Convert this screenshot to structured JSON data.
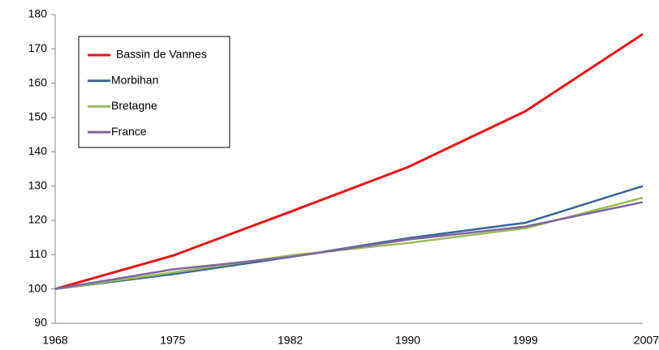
{
  "chart_data": {
    "type": "line",
    "categories": [
      "1968",
      "1975",
      "1982",
      "1990",
      "1999",
      "2007"
    ],
    "series": [
      {
        "name": "Bassin de Vannes",
        "color": "#e8141b",
        "values": [
          100,
          109.7,
          122.5,
          135.5,
          151.8,
          174.3
        ]
      },
      {
        "name": "Morbihan",
        "color": "#3b6694",
        "values": [
          100,
          104.3,
          109.3,
          114.8,
          119.3,
          130
        ]
      },
      {
        "name": "Bretagne",
        "color": "#9bbb59",
        "values": [
          100,
          104.8,
          109.8,
          113.4,
          117.7,
          126.6
        ]
      },
      {
        "name": "France",
        "color": "#8064a2",
        "values": [
          100,
          105.7,
          109.3,
          114.4,
          118.2,
          125.3
        ]
      }
    ],
    "ylim": [
      90,
      180
    ],
    "yticks": [
      90,
      100,
      110,
      120,
      130,
      140,
      150,
      160,
      170,
      180
    ],
    "legend": "upper left"
  }
}
